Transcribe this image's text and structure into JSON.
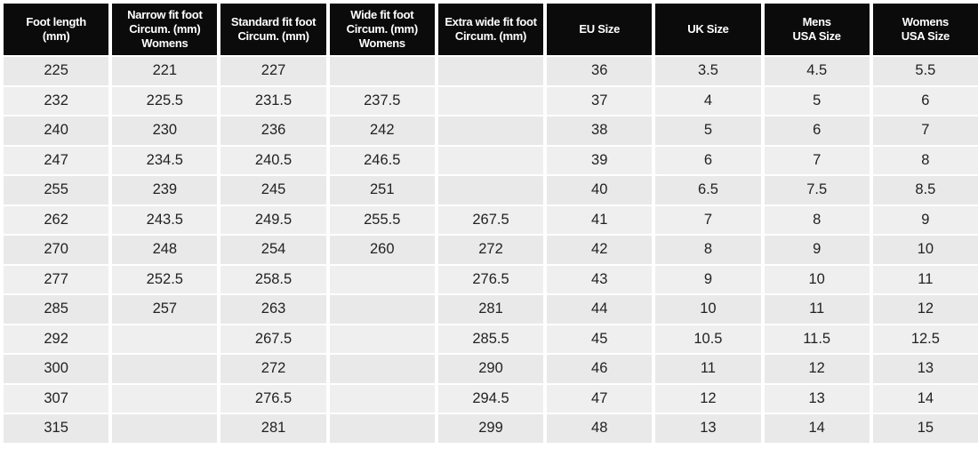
{
  "table": {
    "header": [
      "Foot length\n(mm)",
      "Narrow fit foot\nCircum. (mm)\nWomens",
      "Standard fit foot\nCircum. (mm)",
      "Wide fit foot\nCircum. (mm)\nWomens",
      "Extra wide fit foot\nCircum. (mm)",
      "EU Size",
      "UK Size",
      "Mens\nUSA Size",
      "Womens\nUSA Size"
    ],
    "rows": [
      [
        225,
        221,
        227,
        null,
        null,
        36,
        3.5,
        4.5,
        5.5
      ],
      [
        232,
        225.5,
        231.5,
        237.5,
        null,
        37,
        4,
        5,
        6
      ],
      [
        240,
        230,
        236,
        242,
        null,
        38,
        5,
        6,
        7
      ],
      [
        247,
        234.5,
        240.5,
        246.5,
        null,
        39,
        6,
        7,
        8
      ],
      [
        255,
        239,
        245,
        251,
        null,
        40,
        6.5,
        7.5,
        8.5
      ],
      [
        262,
        243.5,
        249.5,
        255.5,
        267.5,
        41,
        7,
        8,
        9
      ],
      [
        270,
        248,
        254,
        260,
        272,
        42,
        8,
        9,
        10
      ],
      [
        277,
        252.5,
        258.5,
        null,
        276.5,
        43,
        9,
        10,
        11
      ],
      [
        285,
        257,
        263,
        null,
        281,
        44,
        10,
        11,
        12
      ],
      [
        292,
        null,
        267.5,
        null,
        285.5,
        45,
        10.5,
        11.5,
        12.5
      ],
      [
        300,
        null,
        272,
        null,
        290,
        46,
        11,
        12,
        13
      ],
      [
        307,
        null,
        276.5,
        null,
        294.5,
        47,
        12,
        13,
        14
      ],
      [
        315,
        null,
        281,
        null,
        299,
        48,
        13,
        14,
        15
      ]
    ]
  }
}
